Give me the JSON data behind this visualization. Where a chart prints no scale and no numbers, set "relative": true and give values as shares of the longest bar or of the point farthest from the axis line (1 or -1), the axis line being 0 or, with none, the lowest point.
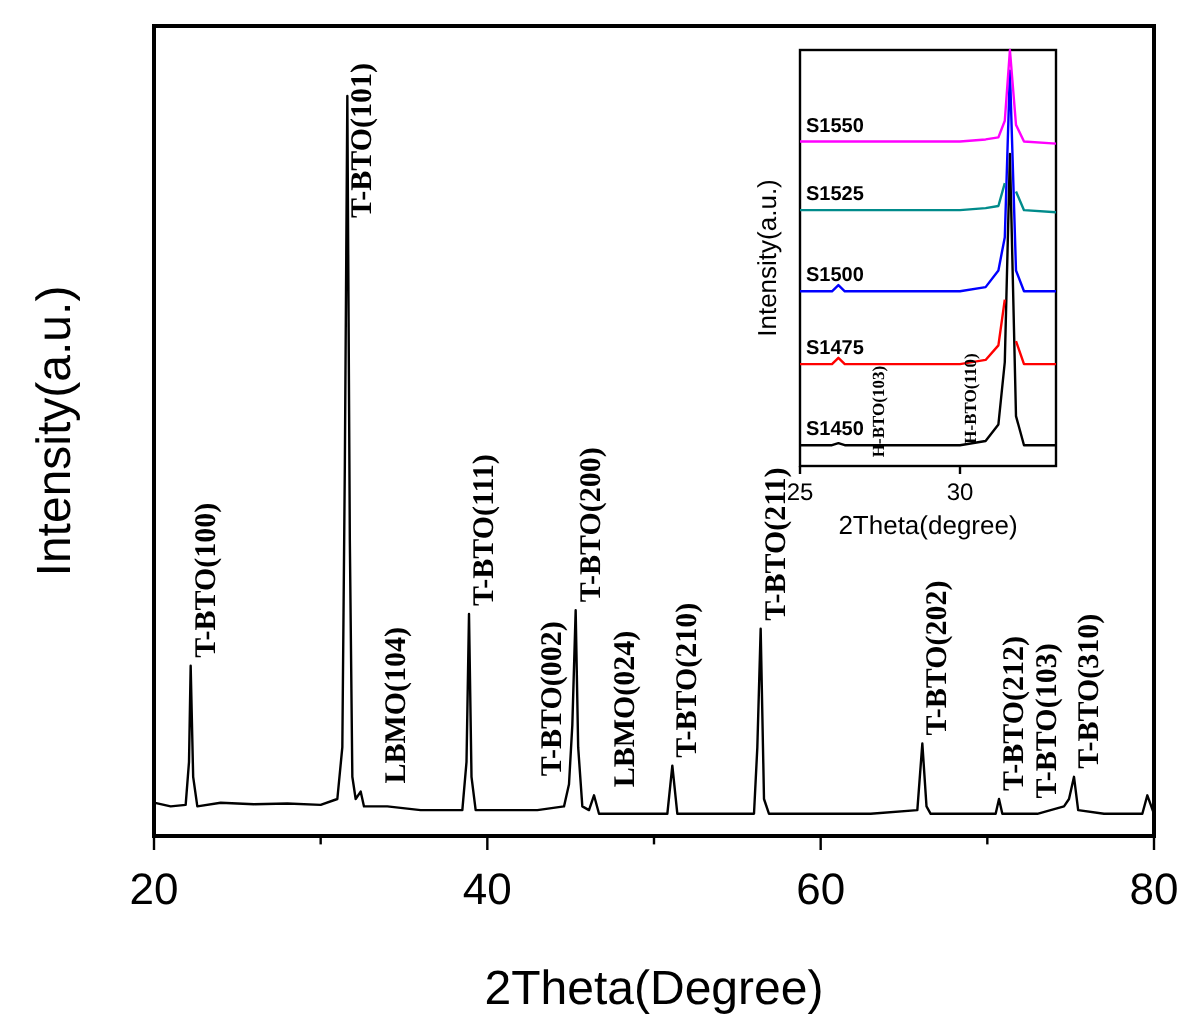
{
  "chart_data": [
    {
      "type": "line",
      "xlabel": "2Theta(Degree)",
      "ylabel": "Intensity(a.u.)",
      "relative": true,
      "xlim": [
        20,
        80
      ],
      "xticks": [
        20,
        {
          "value": 30,
          "label": null
        },
        40,
        {
          "value": 50,
          "label": null
        },
        60,
        {
          "value": 70,
          "label": null
        },
        80
      ],
      "x": [
        20,
        21,
        21.9,
        22.1,
        22.2,
        22.35,
        22.6,
        24,
        26,
        28,
        30,
        31,
        31.3,
        31.45,
        31.6,
        31.75,
        31.9,
        32.1,
        32.4,
        32.6,
        34,
        36,
        38.5,
        38.75,
        38.9,
        39.05,
        39.3,
        41,
        43,
        44.6,
        44.9,
        45.1,
        45.3,
        45.45,
        45.7,
        46.1,
        46.4,
        46.7,
        48,
        50.8,
        51.1,
        51.4,
        53,
        56,
        56.2,
        56.4,
        56.6,
        56.9,
        60,
        63,
        65.8,
        66.1,
        66.35,
        66.6,
        69,
        70.5,
        70.7,
        70.9,
        73,
        74.6,
        74.9,
        75.2,
        75.45,
        77,
        79.3,
        79.6,
        80
      ],
      "series": [
        {
          "color": "#000000",
          "values": [
            0.045,
            0.04,
            0.042,
            0.1,
            0.23,
            0.08,
            0.04,
            0.045,
            0.043,
            0.044,
            0.042,
            0.05,
            0.12,
            0.5,
            1.0,
            0.4,
            0.08,
            0.05,
            0.06,
            0.04,
            0.04,
            0.035,
            0.035,
            0.1,
            0.3,
            0.08,
            0.035,
            0.035,
            0.035,
            0.04,
            0.07,
            0.15,
            0.305,
            0.12,
            0.04,
            0.035,
            0.055,
            0.03,
            0.03,
            0.03,
            0.095,
            0.03,
            0.03,
            0.03,
            0.12,
            0.28,
            0.05,
            0.03,
            0.03,
            0.03,
            0.035,
            0.125,
            0.04,
            0.03,
            0.03,
            0.03,
            0.05,
            0.03,
            0.03,
            0.04,
            0.05,
            0.08,
            0.035,
            0.03,
            0.03,
            0.055,
            0.03
          ]
        }
      ],
      "annotations": [
        {
          "text": "T-BTO(100)",
          "x": 22.2,
          "y": 0.23
        },
        {
          "text": "T-BTO(101)",
          "x": 31.6,
          "y": 1.0
        },
        {
          "text": "LBMO(104)",
          "x": 32.4,
          "y": 0.06
        },
        {
          "text": "T-BTO(111)",
          "x": 38.9,
          "y": 0.3
        },
        {
          "text": "T-BTO(002)",
          "x": 44.9,
          "y": 0.07
        },
        {
          "text": "T-BTO(200)",
          "x": 45.3,
          "y": 0.305
        },
        {
          "text": "LBMO(024)",
          "x": 46.4,
          "y": 0.055
        },
        {
          "text": "T-BTO(210)",
          "x": 51.1,
          "y": 0.095
        },
        {
          "text": "T-BTO(211)",
          "x": 56.4,
          "y": 0.28
        },
        {
          "text": "T-BTO(202)",
          "x": 66.1,
          "y": 0.125
        },
        {
          "text": "T-BTO(212)",
          "x": 70.7,
          "y": 0.05
        },
        {
          "text": "T-BTO(103)",
          "x": 74.6,
          "y": 0.04
        },
        {
          "text": "T-BTO(310)",
          "x": 75.2,
          "y": 0.08
        }
      ]
    },
    {
      "type": "line",
      "xlabel": "2Theta(degree)",
      "ylabel": "Intensity(a.u.)",
      "relative": true,
      "xlim": [
        25,
        33
      ],
      "xticks": [
        25,
        30
      ],
      "x": [
        25,
        26,
        26.2,
        26.4,
        28,
        30,
        30.8,
        31.2,
        31.4,
        31.56,
        31.75,
        32,
        33
      ],
      "series": [
        {
          "name": "S1450",
          "color": "#000000",
          "values": [
            0.05,
            0.05,
            0.055,
            0.05,
            0.05,
            0.05,
            0.06,
            0.1,
            0.25,
            0.75,
            0.12,
            0.05,
            0.05
          ]
        },
        {
          "name": "S1475",
          "color": "#ff0000",
          "values": [
            0.245,
            0.245,
            0.26,
            0.245,
            0.245,
            0.245,
            0.255,
            0.29,
            0.4,
            null,
            0.3,
            0.245,
            0.245
          ]
        },
        {
          "name": "S1500",
          "color": "#0000ff",
          "values": [
            0.42,
            0.42,
            0.435,
            0.42,
            0.42,
            0.42,
            0.43,
            0.47,
            0.55,
            0.95,
            0.47,
            0.42,
            0.42
          ]
        },
        {
          "name": "S1525",
          "color": "#008b8b",
          "values": [
            0.615,
            0.615,
            0.615,
            0.615,
            0.615,
            0.615,
            0.62,
            0.625,
            0.68,
            null,
            0.66,
            0.615,
            0.61
          ]
        },
        {
          "name": "S1550",
          "color": "#ff00ff",
          "values": [
            0.78,
            0.78,
            0.78,
            0.78,
            0.78,
            0.78,
            0.785,
            0.79,
            0.83,
            1.0,
            0.82,
            0.78,
            0.775
          ]
        }
      ],
      "annotations": [
        {
          "text": "H-BTO(103)",
          "x": 26.2,
          "y": 0.26
        },
        {
          "text": "H-BTO(110)",
          "x": 31.2,
          "y": 0.29
        }
      ]
    }
  ]
}
